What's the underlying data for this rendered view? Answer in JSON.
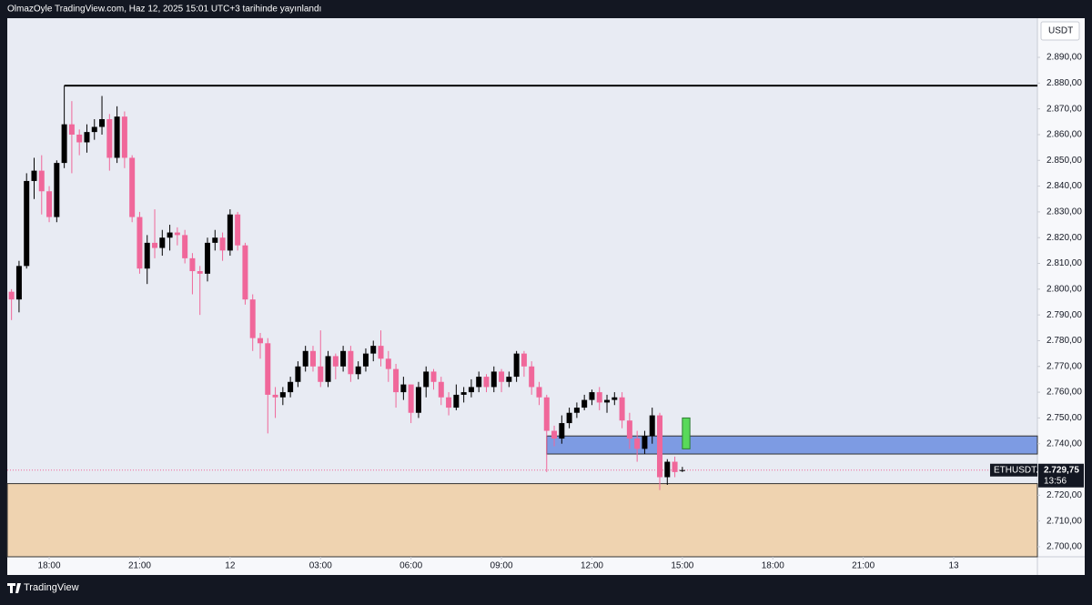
{
  "chart_data": {
    "type": "candlestick",
    "header": "OlmazOyle TradingView.com, Haz 12, 2025 15:01 UTC+3 tarihinde yayınlandı",
    "currency": "USDT",
    "symbol": "ETHUSDT.P",
    "last_price": 2729.75,
    "last_price_label": "2.729,75",
    "countdown": "13:56",
    "brand": "TradingView",
    "bull_color": "#000000",
    "bear_color": "#f0679a",
    "grid": false,
    "open": [
      2799,
      2796,
      2809,
      2842,
      2846,
      2838,
      2828,
      2849,
      2864,
      2860,
      2857,
      2861,
      2863,
      2866,
      2851,
      2867,
      2851,
      2828,
      2808,
      2818,
      2816,
      2820,
      2822,
      2821,
      2812,
      2807,
      2806,
      2818,
      2820,
      2815,
      2829,
      2817,
      2796,
      2781,
      2779,
      2759,
      2758,
      2760,
      2764,
      2770,
      2776,
      2770,
      2764,
      2774,
      2770,
      2776,
      2767,
      2770,
      2775,
      2778,
      2773,
      2769,
      2760,
      2763,
      2752,
      2762,
      2768,
      2764,
      2758,
      2754,
      2759,
      2760,
      2762,
      2766,
      2762,
      2768,
      2764,
      2766,
      2775,
      2770,
      2762,
      2758,
      2745,
      2742,
      2748,
      2752,
      2754,
      2757,
      2760,
      2756,
      2757,
      2758,
      2749,
      2742,
      2738,
      2743,
      2751,
      2727,
      2733,
      2729.5
    ],
    "high": [
      2800,
      2811,
      2845,
      2851,
      2852,
      2840,
      2850,
      2879,
      2873,
      2862,
      2864,
      2866,
      2875,
      2868,
      2871,
      2869,
      2852,
      2830,
      2821,
      2831,
      2823,
      2825,
      2824,
      2823,
      2814,
      2809,
      2820,
      2823,
      2822,
      2831,
      2830,
      2818,
      2798,
      2783,
      2781,
      2762,
      2762,
      2766,
      2772,
      2778,
      2778,
      2784,
      2776,
      2775,
      2778,
      2778,
      2772,
      2777,
      2780,
      2784,
      2776,
      2771,
      2766,
      2763,
      2764,
      2770,
      2769,
      2766,
      2760,
      2763,
      2762,
      2765,
      2768,
      2767,
      2770,
      2769,
      2768,
      2776,
      2776,
      2772,
      2764,
      2759,
      2747,
      2751,
      2754,
      2756,
      2759,
      2761,
      2762,
      2759,
      2760,
      2760,
      2752,
      2745,
      2745,
      2754,
      2752,
      2734,
      2735,
      2731
    ],
    "low": [
      2788,
      2791,
      2808,
      2835,
      2829,
      2826,
      2826,
      2847,
      2845,
      2852,
      2853,
      2858,
      2860,
      2846,
      2849,
      2847,
      2826,
      2806,
      2802,
      2812,
      2813,
      2815,
      2817,
      2810,
      2798,
      2790,
      2803,
      2815,
      2811,
      2813,
      2815,
      2794,
      2776,
      2773,
      2744,
      2750,
      2755,
      2758,
      2762,
      2768,
      2768,
      2762,
      2762,
      2765,
      2768,
      2764,
      2765,
      2768,
      2772,
      2770,
      2764,
      2754,
      2757,
      2748,
      2750,
      2758,
      2761,
      2755,
      2751,
      2753,
      2756,
      2758,
      2760,
      2760,
      2760,
      2760,
      2762,
      2764,
      2766,
      2759,
      2755,
      2729,
      2739,
      2740,
      2746,
      2750,
      2753,
      2755,
      2753,
      2752,
      2755,
      2746,
      2738,
      2733,
      2736,
      2740,
      2722,
      2724,
      2727,
      2729
    ],
    "close": [
      2796,
      2809,
      2842,
      2846,
      2838,
      2828,
      2849,
      2864,
      2860,
      2857,
      2861,
      2863,
      2866,
      2851,
      2867,
      2851,
      2828,
      2808,
      2818,
      2816,
      2820,
      2822,
      2821,
      2812,
      2807,
      2806,
      2818,
      2820,
      2815,
      2829,
      2817,
      2796,
      2781,
      2779,
      2759,
      2758,
      2760,
      2764,
      2770,
      2776,
      2770,
      2764,
      2774,
      2770,
      2776,
      2767,
      2770,
      2775,
      2778,
      2773,
      2769,
      2760,
      2763,
      2752,
      2762,
      2768,
      2764,
      2758,
      2754,
      2759,
      2760,
      2762,
      2766,
      2762,
      2768,
      2764,
      2766,
      2775,
      2770,
      2762,
      2758,
      2745,
      2742,
      2748,
      2752,
      2754,
      2757,
      2760,
      2756,
      2757,
      2758,
      2749,
      2742,
      2738,
      2743,
      2751,
      2727,
      2733,
      2729,
      2729.75
    ],
    "xlim": [
      -0.56,
      136.1
    ],
    "xticks": [
      {
        "value": 5,
        "label": "18:00"
      },
      {
        "value": 17,
        "label": "21:00"
      },
      {
        "value": 29,
        "label": "12"
      },
      {
        "value": 41,
        "label": "03:00"
      },
      {
        "value": 53,
        "label": "06:00"
      },
      {
        "value": 65,
        "label": "09:00"
      },
      {
        "value": 77,
        "label": "12:00"
      },
      {
        "value": 89,
        "label": "15:00"
      },
      {
        "value": 101,
        "label": "18:00"
      },
      {
        "value": 113,
        "label": "21:00"
      },
      {
        "value": 125,
        "label": "13"
      }
    ],
    "ylim": [
      2696.1,
      2905.2
    ],
    "yticks": [
      {
        "value": 2700,
        "label": "2.700,00"
      },
      {
        "value": 2710,
        "label": "2.710,00"
      },
      {
        "value": 2720,
        "label": "2.720,00"
      },
      {
        "value": 2730,
        "label": "2.730,00"
      },
      {
        "value": 2740,
        "label": "2.740,00"
      },
      {
        "value": 2750,
        "label": "2.750,00"
      },
      {
        "value": 2760,
        "label": "2.760,00"
      },
      {
        "value": 2770,
        "label": "2.770,00"
      },
      {
        "value": 2780,
        "label": "2.780,00"
      },
      {
        "value": 2790,
        "label": "2.790,00"
      },
      {
        "value": 2800,
        "label": "2.800,00"
      },
      {
        "value": 2810,
        "label": "2.810,00"
      },
      {
        "value": 2820,
        "label": "2.820,00"
      },
      {
        "value": 2830,
        "label": "2.830,00"
      },
      {
        "value": 2840,
        "label": "2.840,00"
      },
      {
        "value": 2850,
        "label": "2.850,00"
      },
      {
        "value": 2860,
        "label": "2.860,00"
      },
      {
        "value": 2870,
        "label": "2.870,00"
      },
      {
        "value": 2880,
        "label": "2.880,00"
      },
      {
        "value": 2890,
        "label": "2.890,00"
      }
    ],
    "hline": {
      "value": 2879,
      "x_start": 7,
      "color": "#000000"
    },
    "zones": [
      {
        "low": 2696.1,
        "high": 2724.5,
        "x_start": -0.56,
        "color": "#efd3b0",
        "border": "#333333"
      },
      {
        "low": 2736,
        "high": 2743,
        "x_start": 71,
        "color": "#7d9be3",
        "border": "#333333"
      },
      {
        "low": 2738,
        "high": 2750,
        "x_start": 89,
        "x_end": 90,
        "color": "#59d95a",
        "border": "#2e7d32"
      }
    ]
  }
}
